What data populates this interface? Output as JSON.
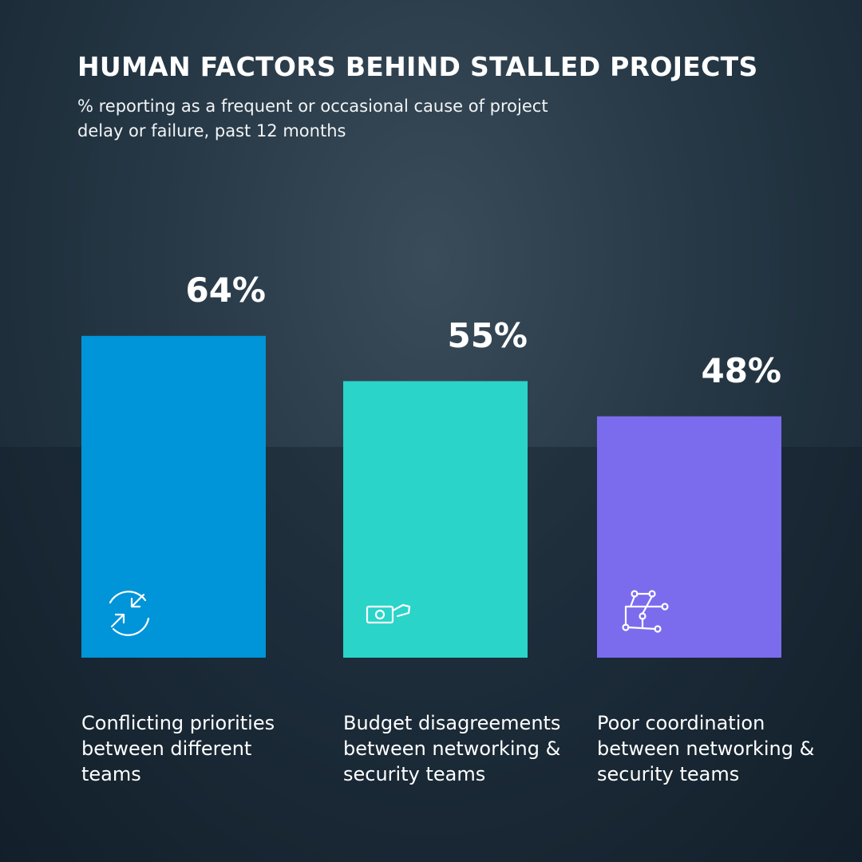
{
  "chart_data": {
    "type": "bar",
    "title": "HUMAN FACTORS BEHIND STALLED PROJECTS",
    "subtitle": "% reporting as a frequent or occasional cause of project delay or failure, past 12 months",
    "categories": [
      "Conflicting priorities between different teams",
      "Budget disagreements between networking & security teams",
      "Poor coordination between networking & security teams"
    ],
    "values": [
      64,
      55,
      48
    ],
    "value_labels": [
      "64%",
      "55%",
      "48%"
    ],
    "colors": [
      "#0094d9",
      "#2ad4c9",
      "#7b6cee"
    ]
  }
}
